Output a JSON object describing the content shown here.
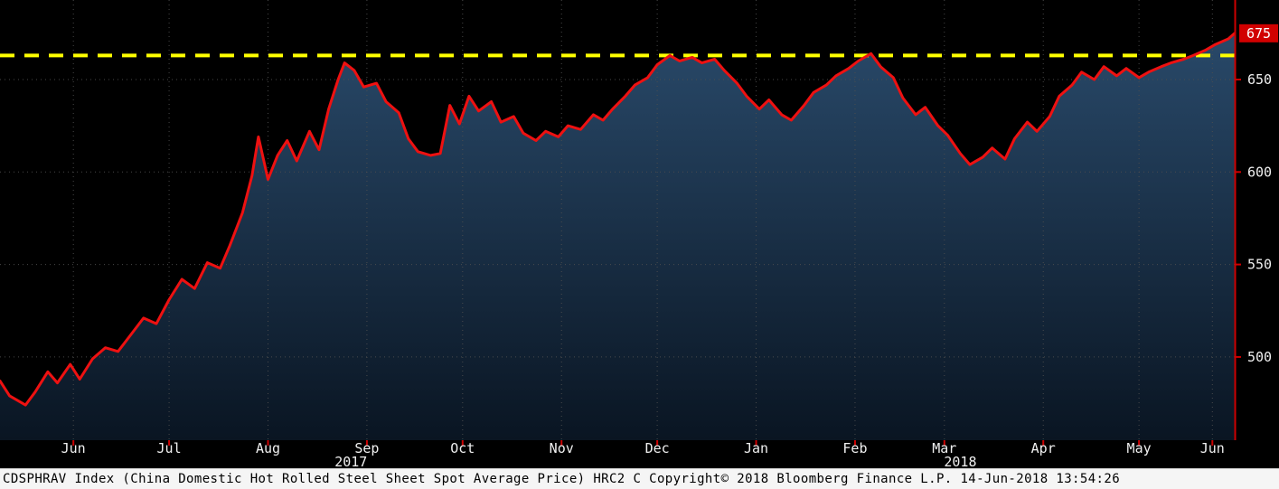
{
  "footer": {
    "text": "CDSPHRAV Index (China Domestic Hot Rolled Steel Sheet Spot Average Price) HRC2 C Copyright© 2018 Bloomberg Finance L.P. 14-Jun-2018 13:54:26"
  },
  "chart_data": {
    "type": "area",
    "title": "CDSPHRAV Index (China Domestic Hot Rolled Steel Sheet Spot Average Price)",
    "series_name": "CDSPHRAV Index",
    "x_range": [
      "2017-05-23",
      "2018-06-14"
    ],
    "ylim": [
      455,
      693
    ],
    "yticks": [
      500,
      550,
      600,
      650
    ],
    "last_price": 675,
    "last_price_label": "675",
    "threshold": 663,
    "grid": "dotted",
    "legend_position": "none",
    "dates": [
      "2017-05-23",
      "2017-05-26",
      "2017-05-31",
      "2017-06-03",
      "2017-06-07",
      "2017-06-10",
      "2017-06-14",
      "2017-06-17",
      "2017-06-21",
      "2017-06-25",
      "2017-06-29",
      "2017-07-03",
      "2017-07-07",
      "2017-07-11",
      "2017-07-15",
      "2017-07-19",
      "2017-07-23",
      "2017-07-27",
      "2017-07-31",
      "2017-08-03",
      "2017-08-07",
      "2017-08-10",
      "2017-08-12",
      "2017-08-15",
      "2017-08-18",
      "2017-08-21",
      "2017-08-24",
      "2017-08-28",
      "2017-08-31",
      "2017-09-03",
      "2017-09-06",
      "2017-09-08",
      "2017-09-11",
      "2017-09-14",
      "2017-09-18",
      "2017-09-21",
      "2017-09-25",
      "2017-09-28",
      "2017-10-01",
      "2017-10-05",
      "2017-10-08",
      "2017-10-11",
      "2017-10-14",
      "2017-10-17",
      "2017-10-20",
      "2017-10-24",
      "2017-10-27",
      "2017-10-31",
      "2017-11-03",
      "2017-11-07",
      "2017-11-10",
      "2017-11-14",
      "2017-11-17",
      "2017-11-21",
      "2017-11-25",
      "2017-11-28",
      "2017-12-01",
      "2017-12-05",
      "2017-12-08",
      "2017-12-12",
      "2017-12-15",
      "2017-12-19",
      "2017-12-22",
      "2017-12-26",
      "2017-12-29",
      "2018-01-02",
      "2018-01-05",
      "2018-01-09",
      "2018-01-12",
      "2018-01-16",
      "2018-01-19",
      "2018-01-23",
      "2018-01-26",
      "2018-01-30",
      "2018-02-02",
      "2018-02-06",
      "2018-02-09",
      "2018-02-13",
      "2018-02-16",
      "2018-02-20",
      "2018-02-23",
      "2018-02-27",
      "2018-03-02",
      "2018-03-06",
      "2018-03-09",
      "2018-03-13",
      "2018-03-16",
      "2018-03-20",
      "2018-03-23",
      "2018-03-27",
      "2018-03-30",
      "2018-04-03",
      "2018-04-06",
      "2018-04-10",
      "2018-04-13",
      "2018-04-17",
      "2018-04-20",
      "2018-04-24",
      "2018-04-27",
      "2018-05-01",
      "2018-05-04",
      "2018-05-08",
      "2018-05-11",
      "2018-05-15",
      "2018-05-18",
      "2018-05-22",
      "2018-05-25",
      "2018-05-29",
      "2018-06-01",
      "2018-06-05",
      "2018-06-08",
      "2018-06-12",
      "2018-06-14"
    ],
    "values": [
      487,
      479,
      474,
      481,
      492,
      486,
      496,
      488,
      499,
      505,
      503,
      512,
      521,
      518,
      531,
      542,
      537,
      551,
      548,
      560,
      578,
      598,
      619,
      596,
      609,
      617,
      606,
      622,
      612,
      634,
      650,
      659,
      655,
      646,
      648,
      638,
      632,
      618,
      611,
      609,
      610,
      636,
      626,
      641,
      633,
      638,
      627,
      630,
      621,
      617,
      622,
      619,
      625,
      623,
      631,
      628,
      634,
      641,
      647,
      651,
      658,
      663,
      660,
      662,
      659,
      661,
      655,
      648,
      641,
      634,
      639,
      631,
      628,
      636,
      643,
      647,
      652,
      656,
      660,
      664,
      657,
      651,
      640,
      631,
      635,
      625,
      620,
      610,
      604,
      608,
      613,
      607,
      618,
      627,
      622,
      630,
      641,
      647,
      654,
      650,
      657,
      652,
      656,
      651,
      654,
      657,
      659,
      661,
      663,
      666,
      669,
      672,
      675
    ],
    "x_axis": {
      "month_labels": [
        {
          "label": "Jun",
          "date": "2017-06-15"
        },
        {
          "label": "Jul",
          "date": "2017-07-15"
        },
        {
          "label": "Aug",
          "date": "2017-08-15"
        },
        {
          "label": "Sep",
          "date": "2017-09-15"
        },
        {
          "label": "Oct",
          "date": "2017-10-15"
        },
        {
          "label": "Nov",
          "date": "2017-11-15"
        },
        {
          "label": "Dec",
          "date": "2017-12-15"
        },
        {
          "label": "Jan",
          "date": "2018-01-15"
        },
        {
          "label": "Feb",
          "date": "2018-02-15"
        },
        {
          "label": "Mar",
          "date": "2018-03-15"
        },
        {
          "label": "Apr",
          "date": "2018-04-15"
        },
        {
          "label": "May",
          "date": "2018-05-15"
        },
        {
          "label": "Jun",
          "date": "2018-06-07"
        }
      ],
      "year_labels": [
        {
          "label": "2017",
          "date": "2017-09-10"
        },
        {
          "label": "2018",
          "date": "2018-03-20"
        }
      ]
    },
    "colors": {
      "background": "#000000",
      "line": "#ee1111",
      "area_top": "#2b4d6f",
      "area_bottom": "#0a1624",
      "threshold": "#ffff00",
      "grid": "#4f4f4f",
      "axis": "#cc0000",
      "tick_text": "#f0f0f0",
      "last_price_bg": "#d10000",
      "last_price_text": "#ffffff"
    }
  }
}
